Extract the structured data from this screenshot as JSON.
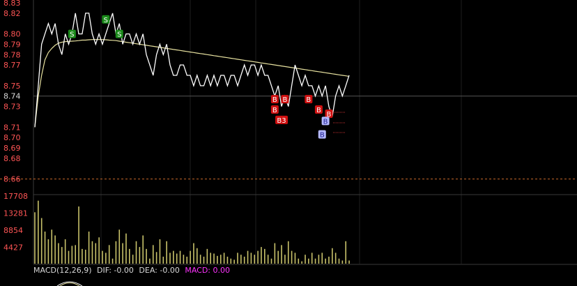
{
  "chart_data": [
    {
      "type": "line",
      "title": "",
      "ylim": [
        8.655,
        8.83
      ],
      "price_ticks": [
        "8.83",
        "8.82",
        "8.80",
        "8.79",
        "8.78",
        "8.77",
        "8.75",
        "8.74",
        "8.73",
        "8.71",
        "8.70",
        "8.69",
        "8.68",
        "8.66"
      ],
      "price_tick_values": [
        8.83,
        8.82,
        8.8,
        8.79,
        8.78,
        8.77,
        8.75,
        8.74,
        8.73,
        8.71,
        8.7,
        8.69,
        8.68,
        8.66
      ],
      "reference_price": 8.74,
      "lower_bound_price": 8.66,
      "grid": true,
      "series": [
        {
          "role": "price",
          "color": "#ffffff",
          "values": [
            8.71,
            8.75,
            8.79,
            8.8,
            8.81,
            8.8,
            8.81,
            8.79,
            8.78,
            8.8,
            8.79,
            8.8,
            8.82,
            8.8,
            8.8,
            8.82,
            8.82,
            8.8,
            8.79,
            8.8,
            8.79,
            8.8,
            8.81,
            8.82,
            8.8,
            8.81,
            8.79,
            8.8,
            8.8,
            8.79,
            8.8,
            8.79,
            8.8,
            8.78,
            8.77,
            8.76,
            8.78,
            8.79,
            8.78,
            8.79,
            8.77,
            8.76,
            8.76,
            8.77,
            8.77,
            8.76,
            8.76,
            8.75,
            8.76,
            8.75,
            8.75,
            8.76,
            8.75,
            8.76,
            8.75,
            8.76,
            8.76,
            8.75,
            8.76,
            8.76,
            8.75,
            8.76,
            8.77,
            8.76,
            8.77,
            8.77,
            8.76,
            8.77,
            8.76,
            8.76,
            8.75,
            8.74,
            8.75,
            8.73,
            8.74,
            8.73,
            8.75,
            8.77,
            8.76,
            8.75,
            8.76,
            8.75,
            8.75,
            8.74,
            8.75,
            8.74,
            8.75,
            8.73,
            8.72,
            8.74,
            8.75,
            8.74,
            8.75,
            8.76
          ]
        },
        {
          "role": "average",
          "color": "#e8e2a0",
          "values": [
            8.71,
            8.74,
            8.76,
            8.775,
            8.782,
            8.786,
            8.789,
            8.791,
            8.792,
            8.7925,
            8.7928,
            8.793,
            8.7932,
            8.7935,
            8.794,
            8.794,
            8.7943,
            8.7945,
            8.7945,
            8.7945,
            8.7945,
            8.7943,
            8.794,
            8.7938,
            8.7935,
            8.793,
            8.7925,
            8.792,
            8.7915,
            8.791,
            8.7905,
            8.79,
            8.7895,
            8.789,
            8.7885,
            8.788,
            8.7875,
            8.787,
            8.7865,
            8.786,
            8.7855,
            8.785,
            8.7845,
            8.784,
            8.7835,
            8.783,
            8.7825,
            8.782,
            8.7815,
            8.781,
            8.7805,
            8.78,
            8.7795,
            8.779,
            8.7785,
            8.778,
            8.7775,
            8.777,
            8.7765,
            8.776,
            8.7755,
            8.775,
            8.7745,
            8.774,
            8.7735,
            8.773,
            8.7725,
            8.772,
            8.7715,
            8.771,
            8.7705,
            8.77,
            8.7695,
            8.769,
            8.7685,
            8.768,
            8.7675,
            8.767,
            8.7665,
            8.766,
            8.7655,
            8.765,
            8.7645,
            8.764,
            8.7635,
            8.763,
            8.7625,
            8.762,
            8.7615,
            8.761,
            8.7605,
            8.76,
            8.7595,
            8.759
          ]
        }
      ],
      "annotations": [
        {
          "text": "S",
          "index": 11,
          "price": 8.8,
          "kind": "sell"
        },
        {
          "text": "S",
          "index": 21,
          "price": 8.814,
          "kind": "sell"
        },
        {
          "text": "S",
          "index": 25,
          "price": 8.8,
          "kind": "sell"
        },
        {
          "text": "B",
          "index": 71,
          "price": 8.737,
          "kind": "buy"
        },
        {
          "text": "B",
          "index": 74,
          "price": 8.737,
          "kind": "buy"
        },
        {
          "text": "B",
          "index": 71,
          "price": 8.727,
          "kind": "buy"
        },
        {
          "text": "B3",
          "index": 73,
          "price": 8.717,
          "kind": "buy"
        },
        {
          "text": "B",
          "index": 81,
          "price": 8.737,
          "kind": "buy"
        },
        {
          "text": "B",
          "index": 84,
          "price": 8.727,
          "kind": "buy"
        },
        {
          "text": "B",
          "index": 87,
          "price": 8.723,
          "kind": "buy"
        },
        {
          "text": "B",
          "index": 86,
          "price": 8.716,
          "kind": "buy-pending"
        },
        {
          "text": "B",
          "index": 85,
          "price": 8.703,
          "kind": "buy-pending"
        }
      ]
    },
    {
      "type": "bar",
      "title": "",
      "ylim": [
        0,
        17708
      ],
      "volume_ticks": [
        "17708",
        "13281",
        "8854",
        "4427"
      ],
      "volume_tick_values": [
        17708,
        13281,
        8854,
        4427
      ],
      "bar_color": "#c8c26a",
      "values": [
        13500,
        16500,
        12000,
        8500,
        6500,
        9000,
        7500,
        5500,
        4500,
        6500,
        3500,
        4800,
        5000,
        15000,
        4000,
        3800,
        8500,
        6000,
        5500,
        7000,
        3500,
        3000,
        5000,
        1500,
        6000,
        9000,
        5500,
        8000,
        4000,
        2500,
        6000,
        4500,
        7500,
        4000,
        1500,
        5000,
        3200,
        6500,
        2000,
        6000,
        3000,
        3500,
        2800,
        3500,
        2500,
        2000,
        3500,
        5500,
        4200,
        2500,
        2000,
        4000,
        3000,
        2800,
        2200,
        2500,
        3000,
        2000,
        1500,
        1200,
        3000,
        2500,
        2000,
        3500,
        3000,
        2500,
        3500,
        4500,
        4000,
        2500,
        1500,
        5500,
        3500,
        5000,
        2500,
        6000,
        3500,
        3000,
        1500,
        800,
        2500,
        1500,
        3000,
        1500,
        2500,
        3000,
        1500,
        2000,
        4200,
        3000,
        1500,
        1000,
        6000,
        1000
      ]
    }
  ],
  "macd_label": {
    "name": "MACD(12,26,9)",
    "dif": "DIF: -0.00",
    "dea": "DEA: -0.00",
    "macd": "MACD: 0.00"
  },
  "colors": {
    "background": "#000000",
    "grid": "#1e1e1e",
    "axis_text_price": "#ff5555",
    "axis_text_neutral": "#d9d9d9",
    "volume_text": "#ff5555",
    "lower_bound_line": "#c86a2a",
    "sell_badge": "#1a8a1a",
    "buy_badge": "#d01010",
    "pending_badge": "#b4b8ff",
    "macd_value": "#ff33ff"
  }
}
